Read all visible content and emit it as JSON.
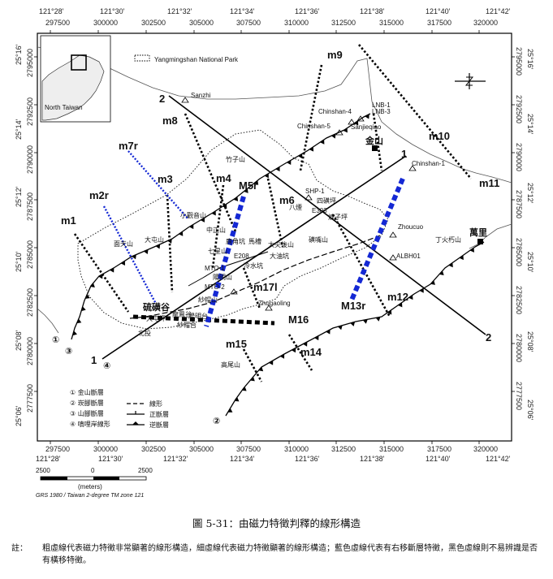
{
  "top_lon_labels": [
    "121°28'",
    "121°30'",
    "121°32'",
    "121°34'",
    "121°36'",
    "121°38'",
    "121°40'",
    "121°42'"
  ],
  "top_x_labels": [
    "297500",
    "300000",
    "302500",
    "305000",
    "307500",
    "310000",
    "312500",
    "315000",
    "317500",
    "320000"
  ],
  "bottom_x_labels": [
    "297500",
    "300000",
    "302500",
    "305000",
    "307500",
    "310000",
    "312500",
    "315000",
    "317500",
    "320000"
  ],
  "bottom_lon_labels": [
    "121°28'",
    "121°30'",
    "121°32'",
    "121°34'",
    "121°36'",
    "121°38'",
    "121°40'",
    "121°42'"
  ],
  "left_y_labels": [
    "2795000",
    "2792500",
    "2790000",
    "2787500",
    "2785000",
    "2782500",
    "2780000",
    "2777500"
  ],
  "left_lat_labels": [
    "25°16'",
    "25°14'",
    "25°12'",
    "25°10'",
    "25°08'",
    "25°06'"
  ],
  "right_y_labels": [
    "2795000",
    "2792500",
    "2790000",
    "2787500",
    "2785000",
    "2782500",
    "2780000",
    "2777500"
  ],
  "right_lat_labels": [
    "25°16'",
    "25°14'",
    "25°12'",
    "25°10'",
    "25°08'",
    "25°06'"
  ],
  "inset_label": "North Taiwan",
  "park_label": "Yangmingshan National Park",
  "lineament_labels": [
    "m9",
    "m8",
    "m7r",
    "m3",
    "m4",
    "M5r",
    "m6",
    "m2r",
    "m1",
    "m10",
    "m11",
    "m17l",
    "M16",
    "M13r",
    "m12",
    "m15",
    "m14"
  ],
  "site_labels": [
    "Sanzhi",
    "Chinshan-4",
    "LNB-1",
    "LNB-3",
    "Chinshan-5",
    "Sanjieqiao",
    "Chinshan-1",
    "SHP-1",
    "E303",
    "Zhoucuo",
    "ALBH01",
    "E208",
    "MTO-1",
    "MTO-2",
    "Zhugaoling"
  ],
  "zh_places": [
    "金山",
    "萬里",
    "硫磺谷",
    "竹子山",
    "小觀音山",
    "大屯山",
    "面天山",
    "七星山",
    "紗帽山",
    "四磺坪",
    "八煙",
    "磺嘴山",
    "大尖後山",
    "大油坑",
    "冷水坑",
    "丁火朽山",
    "馬槽",
    "鹿角坑",
    "焿子坪",
    "陽明山",
    "龍鳳谷",
    "北投",
    "高尾山",
    "中正山",
    "大屯坪",
    "陽明台",
    "紗帽台"
  ],
  "fault_numbers": [
    "①",
    "②",
    "③",
    "④",
    "②"
  ],
  "fault_number_colors": [
    "#000",
    "#000"
  ],
  "legend": {
    "items": [
      "① 金山斷層",
      "② 崁腳斷層",
      "③ 山腳斷層",
      "④ 嗔哩岸線形"
    ],
    "symbols": [
      "線形",
      "正斷層",
      "逆斷層"
    ]
  },
  "scale": {
    "labels": [
      "2500",
      "0",
      "2500"
    ],
    "unit": "(meters)",
    "note": "GRS 1980 / Taiwan 2-degree TM zone 121"
  },
  "caption": "圖 5-31：由磁力特徵判釋的線形構造",
  "note_label": "註：",
  "note_text": "粗虛線代表磁力特徵非常顯著的線形構造，細虛線代表磁力特徵顯著的線形構造；藍色虛線代表有右移斷層特徵，黑色虛線則不易辨識是否有橫移特徵。",
  "colors": {
    "blue_lineament": "#1428d4",
    "black_lineament": "#000000"
  }
}
